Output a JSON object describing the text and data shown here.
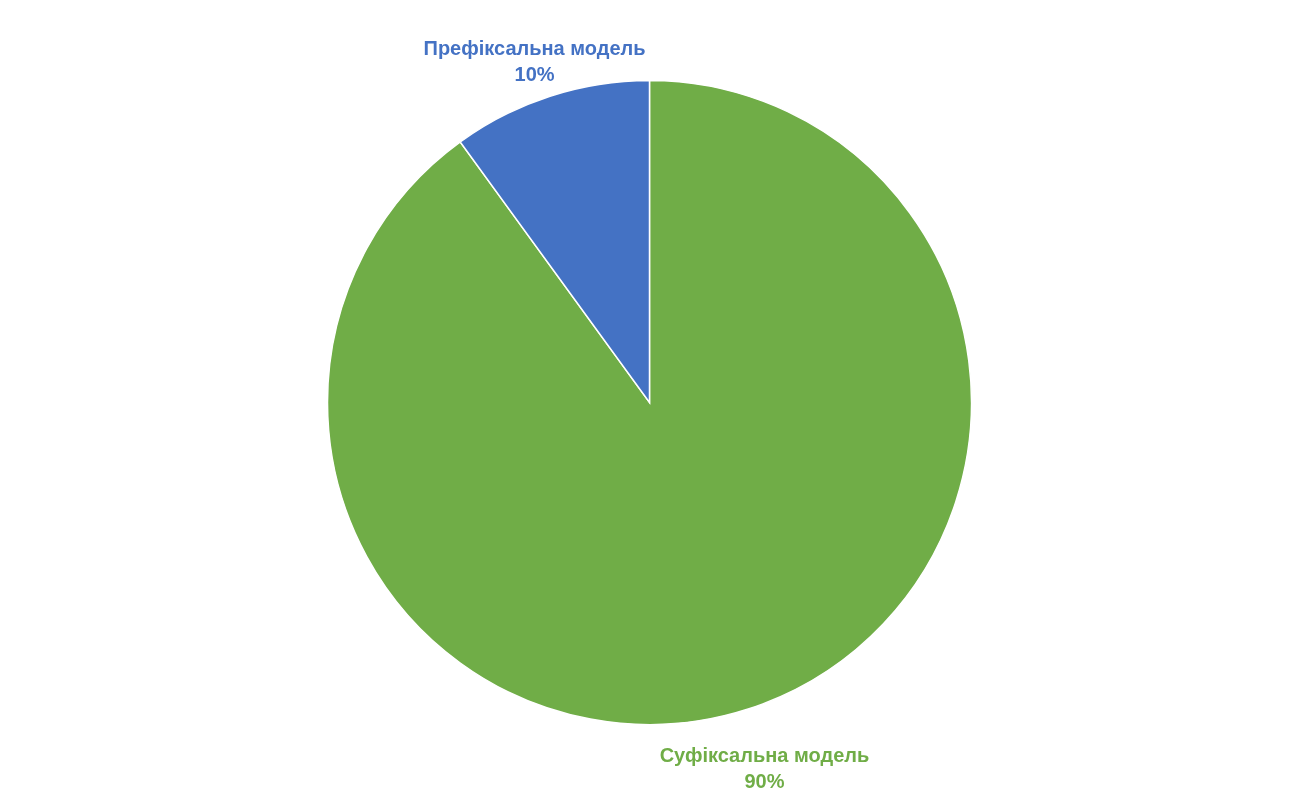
{
  "chart_data": {
    "type": "pie",
    "categories": [
      "Суфіксальна модель",
      "Префіксальна модель"
    ],
    "values": [
      90,
      10
    ],
    "colors": [
      "#70ad47",
      "#4472c4"
    ],
    "value_labels": [
      "90%",
      "10%"
    ]
  }
}
